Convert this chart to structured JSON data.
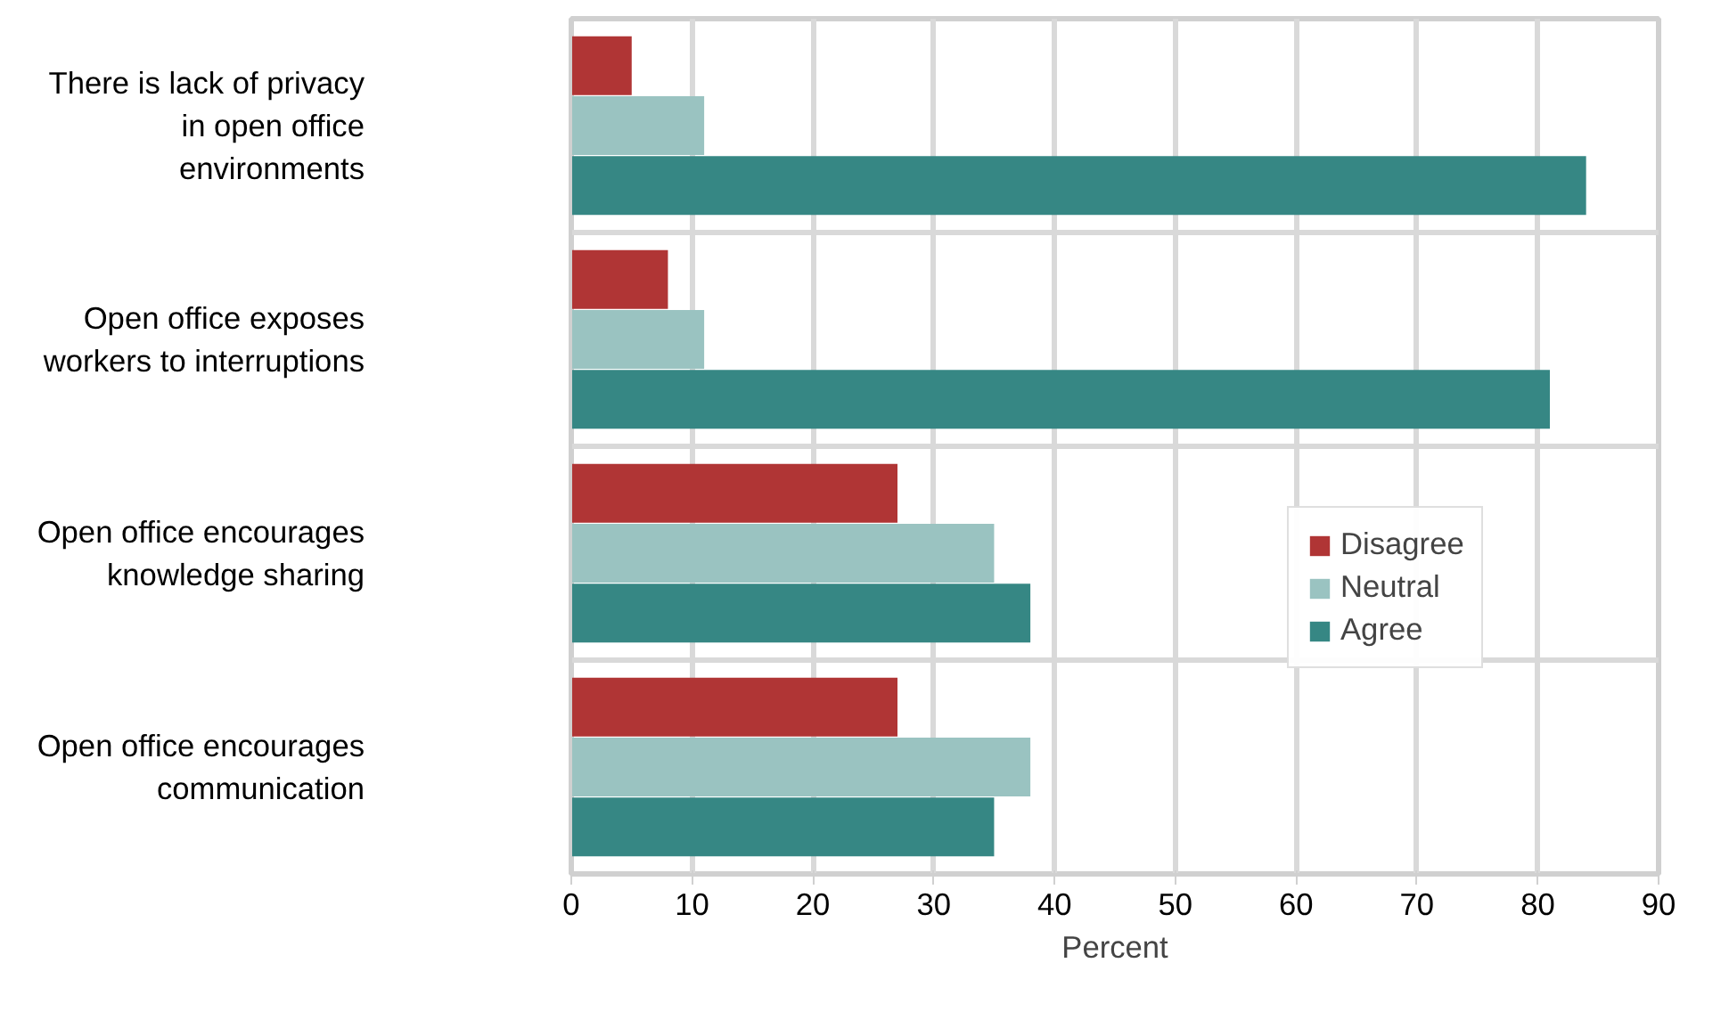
{
  "chart_data": {
    "type": "bar",
    "orientation": "horizontal",
    "xlabel": "Percent",
    "categories": [
      "There is lack of privacy in open office environments",
      "Open office exposes workers to interruptions",
      "Open office encourages knowledge sharing",
      "Open office encourages communication"
    ],
    "series": [
      {
        "name": "Disagree",
        "color": "#b03535",
        "values": [
          5,
          8,
          27,
          27
        ]
      },
      {
        "name": "Neutral",
        "color": "#9ac3c1",
        "values": [
          11,
          11,
          35,
          38
        ]
      },
      {
        "name": "Agree",
        "color": "#368784",
        "values": [
          84,
          81,
          38,
          35
        ]
      }
    ],
    "xlim": [
      0,
      90
    ],
    "xticks": [
      0,
      10,
      20,
      30,
      40,
      50,
      60,
      70,
      80,
      90
    ],
    "grid": true,
    "legend": "right"
  }
}
